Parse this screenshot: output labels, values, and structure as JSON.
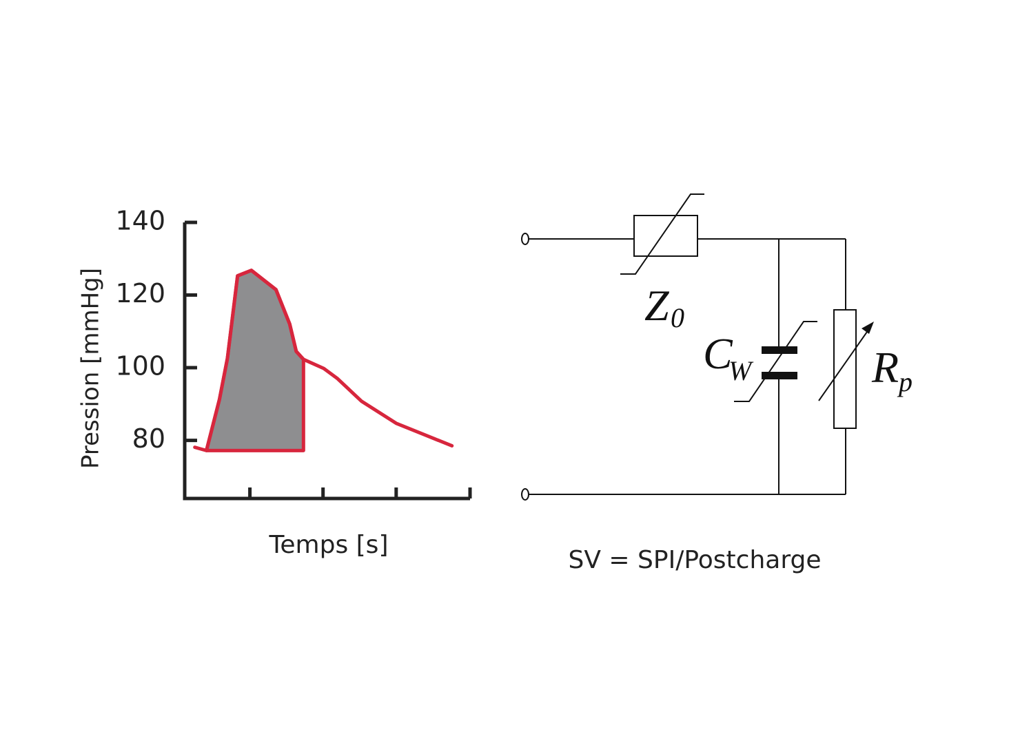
{
  "chart_data": {
    "type": "line",
    "ylabel": "Pression [mmHg]",
    "xlabel": "Temps [s]",
    "xlim": [
      0,
      3.94
    ],
    "xticks": [
      0.9,
      1.91,
      2.92,
      3.94
    ],
    "ylim": [
      64,
      140
    ],
    "yticks": [
      80,
      100,
      120,
      140
    ],
    "series": [
      {
        "color": "#d7263d",
        "fill": "#8e8e90",
        "x": [
          0.3,
          0.48,
          0.59,
          0.73,
          0.92,
          1.26,
          1.45,
          1.54,
          1.64,
          1.64
        ],
        "values": [
          77.2,
          91.3,
          102.6,
          125.3,
          126.8,
          121.5,
          112,
          104.5,
          102.3,
          77.2
        ]
      },
      {
        "color": "#d7263d",
        "x": [
          0.14,
          0.3,
          0.48,
          0.59,
          0.73,
          0.92,
          1.26,
          1.45,
          1.54,
          1.64,
          1.92,
          2.11,
          2.44,
          2.92,
          3.69
        ],
        "values": [
          78.1,
          77.2,
          91.3,
          102.6,
          125.3,
          126.8,
          121.5,
          112,
          104.5,
          102.3,
          99.8,
          97,
          90.8,
          84.7,
          78.5
        ]
      }
    ]
  },
  "diagram": {
    "components": [
      {
        "symbol": "Z",
        "subscript": "0"
      },
      {
        "symbol": "C",
        "subscript": "W"
      },
      {
        "symbol": "R",
        "subscript": "p"
      }
    ],
    "caption": "SV = SPI/Postcharge"
  }
}
